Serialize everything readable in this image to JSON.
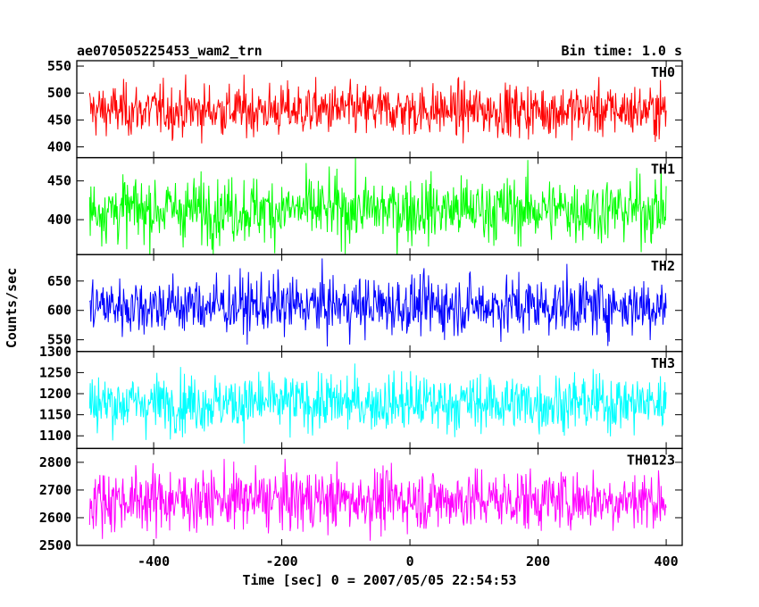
{
  "header": {
    "title": "ae070505225453_wam2_trn",
    "bin_time": "Bin time: 1.0 s"
  },
  "axes": {
    "xlabel": "Time [sec] 0 = 2007/05/05 22:54:53",
    "ylabel": "Counts/sec"
  },
  "chart_data": {
    "type": "line",
    "title": "ae070505225453_wam2_trn",
    "subtitle": "Bin time: 1.0 s",
    "xlabel": "Time [sec] 0 = 2007/05/05 22:54:53",
    "ylabel": "Counts/sec",
    "x": {
      "start": -500,
      "end": 400,
      "step": 1
    },
    "xlim": [
      -520,
      425
    ],
    "xticks": [
      -400,
      -200,
      0,
      200,
      400
    ],
    "grid": false,
    "series": [
      {
        "name": "TH0",
        "color": "#ff0000",
        "ylim": [
          380,
          560
        ],
        "yticks": [
          400,
          450,
          500,
          550
        ],
        "approx_mean": 468,
        "approx_std": 24
      },
      {
        "name": "TH1",
        "color": "#00ff00",
        "ylim": [
          355,
          480
        ],
        "yticks": [
          400,
          450
        ],
        "approx_mean": 413,
        "approx_std": 21
      },
      {
        "name": "TH2",
        "color": "#0000ff",
        "ylim": [
          530,
          695
        ],
        "yticks": [
          550,
          600,
          650
        ],
        "approx_mean": 608,
        "approx_std": 25
      },
      {
        "name": "TH3",
        "color": "#00ffff",
        "ylim": [
          1070,
          1300
        ],
        "yticks": [
          1100,
          1150,
          1200,
          1250,
          1300
        ],
        "approx_mean": 1178,
        "approx_std": 34
      },
      {
        "name": "TH0123",
        "color": "#ff00ff",
        "ylim": [
          2500,
          2850
        ],
        "yticks": [
          2500,
          2600,
          2700,
          2800
        ],
        "approx_mean": 2665,
        "approx_std": 55
      }
    ]
  }
}
